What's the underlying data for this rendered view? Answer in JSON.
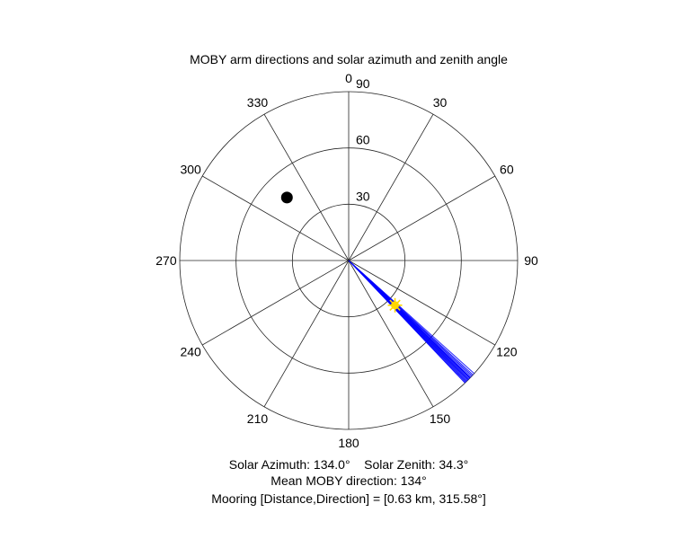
{
  "chart_data": {
    "type": "polar",
    "title": "MOBY arm directions and solar azimuth and zenith angle",
    "theta_zero": "top",
    "theta_direction": "clockwise",
    "theta_ticks": [
      0,
      30,
      60,
      90,
      120,
      150,
      180,
      210,
      240,
      270,
      300,
      330
    ],
    "theta_tick_labels": [
      "0",
      "30",
      "60",
      "90",
      "120",
      "150",
      "180",
      "210",
      "240",
      "270",
      "300",
      "330"
    ],
    "r_ticks": [
      30,
      60,
      90
    ],
    "r_tick_labels": [
      "30",
      "60",
      "90"
    ],
    "rlim": [
      0,
      90
    ],
    "grid": true,
    "series": [
      {
        "kind": "lines",
        "color": "#0000ff",
        "r": 90,
        "theta_deg": [
          132.0,
          132.6,
          133.0,
          133.4,
          133.8,
          134.0,
          134.2,
          134.5,
          134.8,
          135.0,
          135.3,
          135.6,
          135.9,
          136.2,
          136.5
        ]
      },
      {
        "kind": "marker",
        "marker": "sun",
        "color": "#ffd700",
        "theta_deg": 134.0,
        "r": 34.3
      },
      {
        "kind": "marker",
        "marker": "circle",
        "color": "#000000",
        "theta_deg": 315.58,
        "r": 47
      }
    ]
  },
  "captions": {
    "line1": "Solar Azimuth: 134.0°    Solar Zenith: 34.3°",
    "line2": "Mean MOBY direction: 134°",
    "line3": "Mooring [Distance,Direction] = [0.63 km, 315.58°]"
  }
}
